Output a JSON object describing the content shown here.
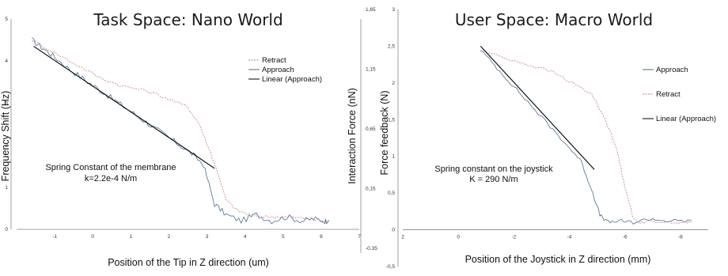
{
  "chart_data": [
    {
      "type": "line",
      "title": "Task Space: Nano World",
      "xlabel": "Position of the Tip in Z direction (um)",
      "ylabel": "Frequency Shift (Hz)",
      "y2label": "Interaction Force (nN)",
      "xlim": [
        -2,
        7
      ],
      "ylim": [
        0,
        5
      ],
      "y2lim": [
        -0.35,
        1.65
      ],
      "xticks": [
        "-1",
        "0",
        "1",
        "2",
        "3",
        "4",
        "5",
        "6",
        "7"
      ],
      "yticks": [
        "0",
        "1",
        "2",
        "3",
        "4",
        "5"
      ],
      "y2ticks": [
        "-0,35",
        "0,15",
        "0,65",
        "1,15",
        "1,65"
      ],
      "legend_position": "right",
      "grid": false,
      "legend": [
        "Retract",
        "Approach",
        "Linear (Approach)"
      ],
      "annotation": [
        "Spring Constant of the membrane",
        "k=2.2e-4 N/m"
      ],
      "series": [
        {
          "name": "Approach",
          "color": "#4a6f95",
          "x": [
            -1.6,
            -1.3,
            -1.0,
            -0.6,
            -0.2,
            0.2,
            0.6,
            1.0,
            1.4,
            1.8,
            2.2,
            2.6,
            2.9,
            3.2,
            3.5,
            3.9,
            4.3,
            4.7,
            5.1,
            5.5,
            5.8,
            6.1,
            6.2
          ],
          "y": [
            4.5,
            4.3,
            4.1,
            3.8,
            3.55,
            3.3,
            3.05,
            2.8,
            2.55,
            2.3,
            2.05,
            1.8,
            1.55,
            0.6,
            0.35,
            0.2,
            0.35,
            0.2,
            0.3,
            0.2,
            0.25,
            0.2,
            0.22
          ]
        },
        {
          "name": "Retract",
          "color": "#c27c7c",
          "x": [
            -1.6,
            -1.0,
            -0.4,
            0.2,
            0.8,
            1.4,
            2.0,
            2.5,
            2.8,
            3.1,
            3.3,
            3.5,
            3.8,
            4.1,
            4.5,
            4.9,
            5.3,
            5.7,
            6.0,
            6.2
          ],
          "y": [
            4.5,
            4.2,
            3.9,
            3.6,
            3.4,
            3.3,
            3.1,
            2.9,
            2.5,
            1.8,
            1.3,
            0.7,
            0.45,
            0.35,
            0.3,
            0.3,
            0.28,
            0.25,
            0.2,
            0.2
          ]
        },
        {
          "name": "Linear (Approach)",
          "color": "#000000",
          "x": [
            -1.55,
            3.2
          ],
          "y": [
            4.35,
            1.45
          ]
        }
      ]
    },
    {
      "type": "line",
      "title": "User Space: Macro World",
      "xlabel": "Position of the Joystick in Z direction (mm)",
      "ylabel": "Force feedback (N)",
      "xlim": [
        2,
        -9
      ],
      "ylim": [
        -0.5,
        3
      ],
      "xticks": [
        "2",
        "0",
        "-2",
        "-4",
        "-6",
        "-8"
      ],
      "yticks": [
        "-0,5",
        "0",
        "0,5",
        "1",
        "1,5",
        "2",
        "2,5",
        "3"
      ],
      "legend_position": "right",
      "grid": false,
      "legend": [
        "Approach",
        "Retract",
        "Linear (Approach)"
      ],
      "annotation": [
        "Spring constant on the joystick",
        "K = 290 N/m"
      ],
      "series": [
        {
          "name": "Approach",
          "color": "#4a6f95",
          "x": [
            -0.8,
            -1.4,
            -2.0,
            -2.6,
            -3.2,
            -3.8,
            -4.4,
            -4.8,
            -5.1,
            -5.4,
            -5.8,
            -6.3,
            -6.9,
            -7.5,
            -8.0,
            -8.4
          ],
          "y": [
            2.45,
            2.2,
            1.95,
            1.7,
            1.45,
            1.2,
            0.95,
            0.55,
            0.2,
            0.1,
            0.12,
            0.1,
            0.15,
            0.12,
            0.12,
            0.12
          ]
        },
        {
          "name": "Retract",
          "color": "#c27c7c",
          "x": [
            -0.8,
            -1.6,
            -2.5,
            -3.4,
            -4.1,
            -4.8,
            -5.3,
            -5.7,
            -6.0,
            -6.3,
            -6.6,
            -7.0,
            -7.6,
            -8.2,
            -8.4
          ],
          "y": [
            2.45,
            2.35,
            2.25,
            2.15,
            2.0,
            1.85,
            1.5,
            1.1,
            0.6,
            0.15,
            0.1,
            0.12,
            0.1,
            0.1,
            0.1
          ]
        },
        {
          "name": "Linear (Approach)",
          "color": "#000000",
          "x": [
            -0.8,
            -4.9
          ],
          "y": [
            2.5,
            0.82
          ]
        }
      ]
    }
  ]
}
